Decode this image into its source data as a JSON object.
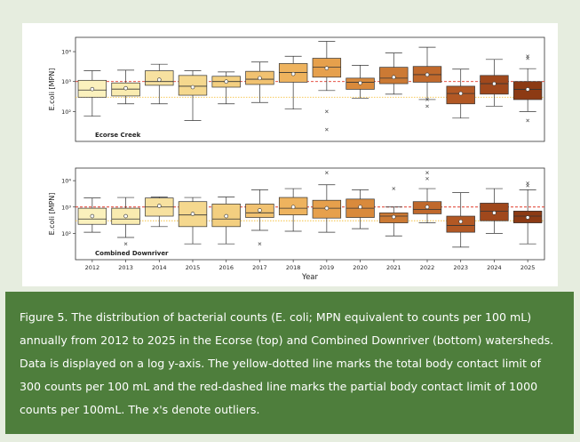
{
  "figure": {
    "caption": "Figure 5. The distribution of bacterial counts (E. coli; MPN equivalent to counts per 100 mL) annually from 2012 to 2025 in the Ecorse (top) and Combined Downriver (bottom) watersheds. Data is displayed on a log y-axis. The yellow-dotted line marks the total body contact limit of 300 counts per 100 mL and the red-dashed line marks the partial body contact limit of 1000 counts per 100mL. The x's denote outliers."
  },
  "colors": {
    "page_bg": "#e6eddf",
    "caption_bg": "#4e7e3c",
    "total_body_line": "#f5c242",
    "partial_body_line": "#e03a2a",
    "box_palette": [
      "#fbf1bd",
      "#f9ebb0",
      "#f7e1a0",
      "#f5d88e",
      "#f3cf80",
      "#f1c271",
      "#eeb35e",
      "#e6a04c",
      "#d98a3c",
      "#cc7a34",
      "#c0692c",
      "#b25824",
      "#a0481c",
      "#8c3a14"
    ]
  },
  "chart_data": [
    {
      "type": "box",
      "label": "Ecorse Creek",
      "ylabel": "E.coli [MPN]",
      "xlabel": "",
      "y_scale": "log",
      "ylim": [
        10,
        30000
      ],
      "y_ticks": [
        {
          "v": 100,
          "t": "10²"
        },
        {
          "v": 1000,
          "t": "10³"
        },
        {
          "v": 10000,
          "t": "10⁴"
        }
      ],
      "x_tick_labels": [],
      "reference_lines": [
        {
          "name": "total body contact limit",
          "value": 300,
          "style": "dotted"
        },
        {
          "name": "partial body contact limit",
          "value": 1000,
          "style": "dashed"
        }
      ],
      "categories": [
        "2012",
        "2013",
        "2014",
        "2015",
        "2016",
        "2017",
        "2018",
        "2019",
        "2020",
        "2021",
        "2022",
        "2023",
        "2024",
        "2025"
      ],
      "boxes": [
        {
          "whislo": 70,
          "q1": 300,
          "med": 520,
          "q3": 1100,
          "whishi": 2300,
          "mean": 560,
          "fliers": []
        },
        {
          "whislo": 180,
          "q1": 330,
          "med": 560,
          "q3": 900,
          "whishi": 2400,
          "mean": 600,
          "fliers": []
        },
        {
          "whislo": 180,
          "q1": 750,
          "med": 1000,
          "q3": 2300,
          "whishi": 3800,
          "mean": 1150,
          "fliers": []
        },
        {
          "whislo": 50,
          "q1": 350,
          "med": 700,
          "q3": 1600,
          "whishi": 2300,
          "mean": 650,
          "fliers": []
        },
        {
          "whislo": 180,
          "q1": 650,
          "med": 1000,
          "q3": 1500,
          "whishi": 2100,
          "mean": 1000,
          "fliers": []
        },
        {
          "whislo": 200,
          "q1": 800,
          "med": 1200,
          "q3": 2200,
          "whishi": 4500,
          "mean": 1300,
          "fliers": []
        },
        {
          "whislo": 120,
          "q1": 950,
          "med": 2000,
          "q3": 4000,
          "whishi": 7000,
          "mean": 1800,
          "fliers": []
        },
        {
          "whislo": 500,
          "q1": 1400,
          "med": 3000,
          "q3": 6000,
          "whishi": 22000,
          "mean": 2800,
          "fliers": [
            100,
            25
          ]
        },
        {
          "whislo": 280,
          "q1": 550,
          "med": 950,
          "q3": 1300,
          "whishi": 3500,
          "mean": 900,
          "fliers": []
        },
        {
          "whislo": 380,
          "q1": 850,
          "med": 1300,
          "q3": 3000,
          "whishi": 9000,
          "mean": 1400,
          "fliers": []
        },
        {
          "whislo": 250,
          "q1": 950,
          "med": 1700,
          "q3": 3200,
          "whishi": 14000,
          "mean": 1700,
          "fliers": [
            250,
            150
          ]
        },
        {
          "whislo": 60,
          "q1": 180,
          "med": 400,
          "q3": 700,
          "whishi": 2600,
          "mean": 400,
          "fliers": []
        },
        {
          "whislo": 150,
          "q1": 380,
          "med": 850,
          "q3": 1600,
          "whishi": 5500,
          "mean": 850,
          "fliers": []
        },
        {
          "whislo": 100,
          "q1": 250,
          "med": 550,
          "q3": 1000,
          "whishi": 2700,
          "mean": 550,
          "fliers": [
            7000,
            6000,
            50
          ]
        }
      ]
    },
    {
      "type": "box",
      "label": "Combined Downriver",
      "ylabel": "E.coli [MPN]",
      "xlabel": "Year",
      "y_scale": "log",
      "ylim": [
        10,
        30000
      ],
      "y_ticks": [
        {
          "v": 100,
          "t": "10²"
        },
        {
          "v": 1000,
          "t": "10³"
        },
        {
          "v": 10000,
          "t": "10⁴"
        }
      ],
      "x_tick_labels": [
        "2012",
        "2013",
        "2014",
        "2015",
        "2016",
        "2017",
        "2018",
        "2019",
        "2020",
        "2021",
        "2022",
        "2023",
        "2024",
        "2025"
      ],
      "reference_lines": [
        {
          "name": "total body contact limit",
          "value": 300,
          "style": "dotted"
        },
        {
          "name": "partial body contact limit",
          "value": 1000,
          "style": "dashed"
        }
      ],
      "categories": [
        "2012",
        "2013",
        "2014",
        "2015",
        "2016",
        "2017",
        "2018",
        "2019",
        "2020",
        "2021",
        "2022",
        "2023",
        "2024",
        "2025"
      ],
      "boxes": [
        {
          "whislo": 110,
          "q1": 220,
          "med": 350,
          "q3": 900,
          "whishi": 2200,
          "mean": 450,
          "fliers": []
        },
        {
          "whislo": 70,
          "q1": 220,
          "med": 350,
          "q3": 900,
          "whishi": 2300,
          "mean": 450,
          "fliers": [
            40
          ]
        },
        {
          "whislo": 180,
          "q1": 450,
          "med": 1000,
          "q3": 2200,
          "whishi": 2400,
          "mean": 1100,
          "fliers": []
        },
        {
          "whislo": 40,
          "q1": 180,
          "med": 500,
          "q3": 1600,
          "whishi": 2300,
          "mean": 550,
          "fliers": []
        },
        {
          "whislo": 40,
          "q1": 180,
          "med": 350,
          "q3": 1300,
          "whishi": 2400,
          "mean": 450,
          "fliers": []
        },
        {
          "whislo": 130,
          "q1": 400,
          "med": 600,
          "q3": 1300,
          "whishi": 4500,
          "mean": 750,
          "fliers": [
            40
          ]
        },
        {
          "whislo": 120,
          "q1": 500,
          "med": 900,
          "q3": 2300,
          "whishi": 5000,
          "mean": 1000,
          "fliers": []
        },
        {
          "whislo": 110,
          "q1": 380,
          "med": 900,
          "q3": 1800,
          "whishi": 7000,
          "mean": 900,
          "fliers": [
            20000
          ]
        },
        {
          "whislo": 150,
          "q1": 400,
          "med": 900,
          "q3": 2000,
          "whishi": 4500,
          "mean": 1000,
          "fliers": []
        },
        {
          "whislo": 80,
          "q1": 250,
          "med": 450,
          "q3": 600,
          "whishi": 1000,
          "mean": 420,
          "fliers": [
            5000
          ]
        },
        {
          "whislo": 250,
          "q1": 550,
          "med": 800,
          "q3": 1600,
          "whishi": 5000,
          "mean": 1000,
          "fliers": [
            20000,
            12000
          ]
        },
        {
          "whislo": 30,
          "q1": 110,
          "med": 200,
          "q3": 450,
          "whishi": 3500,
          "mean": 280,
          "fliers": []
        },
        {
          "whislo": 100,
          "q1": 300,
          "med": 700,
          "q3": 1400,
          "whishi": 5000,
          "mean": 600,
          "fliers": []
        },
        {
          "whislo": 40,
          "q1": 250,
          "med": 450,
          "q3": 700,
          "whishi": 4500,
          "mean": 400,
          "fliers": [
            8000,
            6500
          ]
        }
      ]
    }
  ]
}
